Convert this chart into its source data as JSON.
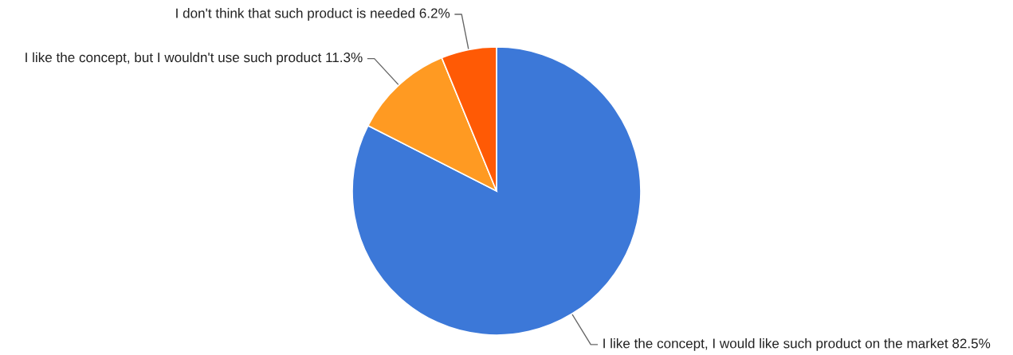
{
  "chart_data": {
    "type": "pie",
    "categories": [
      "I like the concept, I would like such product on the market",
      "I like the concept, but I wouldn't use such product",
      "I don't think that such product is needed"
    ],
    "values": [
      82.5,
      11.3,
      6.2
    ],
    "value_labels": [
      "82.5%",
      "11.3%",
      "6.2%"
    ],
    "colors": [
      "#3c78d8",
      "#ff9a22",
      "#ff5a05"
    ]
  }
}
